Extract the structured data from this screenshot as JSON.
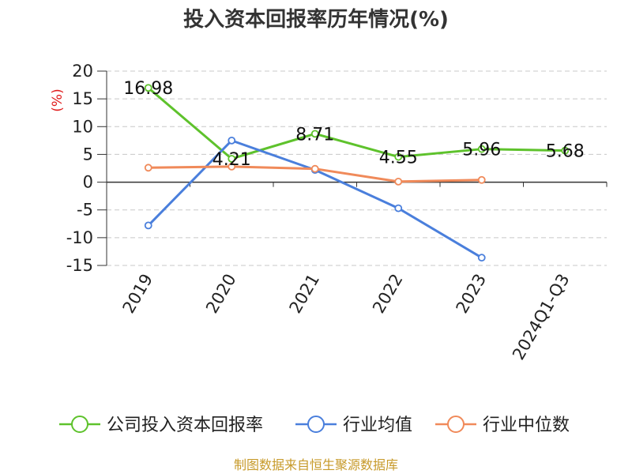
{
  "chart_data": {
    "type": "line",
    "title": "投入资本回报率历年情况(%)",
    "ylabel": "(%)",
    "xlabel": "",
    "categories": [
      "2019",
      "2020",
      "2021",
      "2022",
      "2023",
      "2024Q1-Q3"
    ],
    "ylim": [
      -15,
      20
    ],
    "yticks": [
      20,
      15,
      10,
      5,
      0,
      -5,
      -10,
      -15
    ],
    "grid": true,
    "legend_position": "bottom",
    "series": [
      {
        "name": "公司投入资本回报率",
        "color": "#5ec22c",
        "values": [
          16.98,
          4.21,
          8.71,
          4.55,
          5.96,
          5.68
        ],
        "labels": [
          "16.98",
          "4.21",
          "8.71",
          "4.55",
          "5.96",
          "5.68"
        ]
      },
      {
        "name": "行业均值",
        "color": "#4a7fdc",
        "values": [
          -7.8,
          7.5,
          2.2,
          -4.7,
          -13.6,
          null
        ]
      },
      {
        "name": "行业中位数",
        "color": "#f08a5a",
        "values": [
          2.6,
          2.8,
          2.4,
          0.1,
          0.4,
          null
        ]
      }
    ]
  },
  "footer": {
    "source": "制图数据来自恒生聚源数据库"
  }
}
